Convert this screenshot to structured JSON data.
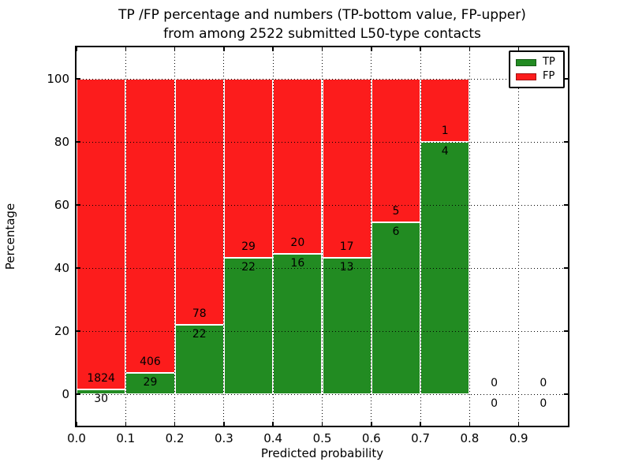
{
  "title": {
    "line1": "TP /FP percentage and numbers (TP-bottom value, FP-upper)",
    "line2": "from among 2522 submitted L50-type contacts"
  },
  "y_axis": {
    "label": "Percentage",
    "ticks": [
      "0",
      "20",
      "40",
      "60",
      "80",
      "100"
    ],
    "tick_values": [
      0,
      20,
      40,
      60,
      80,
      100
    ],
    "range": [
      -10,
      110
    ]
  },
  "x_axis": {
    "label": "Predicted probability",
    "ticks": [
      "0.0",
      "0.1",
      "0.2",
      "0.3",
      "0.4",
      "0.5",
      "0.6",
      "0.7",
      "0.8",
      "0.9"
    ],
    "tick_values": [
      0.0,
      0.1,
      0.2,
      0.3,
      0.4,
      0.5,
      0.6,
      0.7,
      0.8,
      0.9
    ],
    "range": [
      0,
      1
    ]
  },
  "legend": {
    "items": [
      {
        "label": "TP",
        "color": "#228b22"
      },
      {
        "label": "FP",
        "color": "#fc1c1c"
      }
    ]
  },
  "chart_data": {
    "type": "bar",
    "stacked": true,
    "normalized": "each bin stacked to 100%",
    "title": "TP /FP percentage and numbers (TP-bottom value, FP-upper) from among 2522 submitted L50-type contacts",
    "xlabel": "Predicted probability",
    "ylabel": "Percentage",
    "xlim": [
      0,
      1
    ],
    "ylim": [
      -10,
      110
    ],
    "grid": "dotted",
    "legend_position": "upper right",
    "total_contacts": 2522,
    "bin_width": 0.1,
    "bins": [
      "0.0-0.1",
      "0.1-0.2",
      "0.2-0.3",
      "0.3-0.4",
      "0.4-0.5",
      "0.5-0.6",
      "0.6-0.7",
      "0.7-0.8",
      "0.8-0.9",
      "0.9-1.0"
    ],
    "bin_start": [
      0.0,
      0.1,
      0.2,
      0.3,
      0.4,
      0.5,
      0.6,
      0.7,
      0.8,
      0.9
    ],
    "series": [
      {
        "name": "TP",
        "color": "#228b22",
        "counts": [
          30,
          29,
          22,
          22,
          16,
          13,
          6,
          4,
          0,
          0
        ]
      },
      {
        "name": "FP",
        "color": "#fc1c1c",
        "counts": [
          1824,
          406,
          78,
          29,
          20,
          17,
          5,
          1,
          0,
          0
        ]
      }
    ],
    "tp_percent_of_bin": [
      1.6,
      6.7,
      22.0,
      43.1,
      44.4,
      43.3,
      54.5,
      80.0,
      0,
      0
    ]
  }
}
